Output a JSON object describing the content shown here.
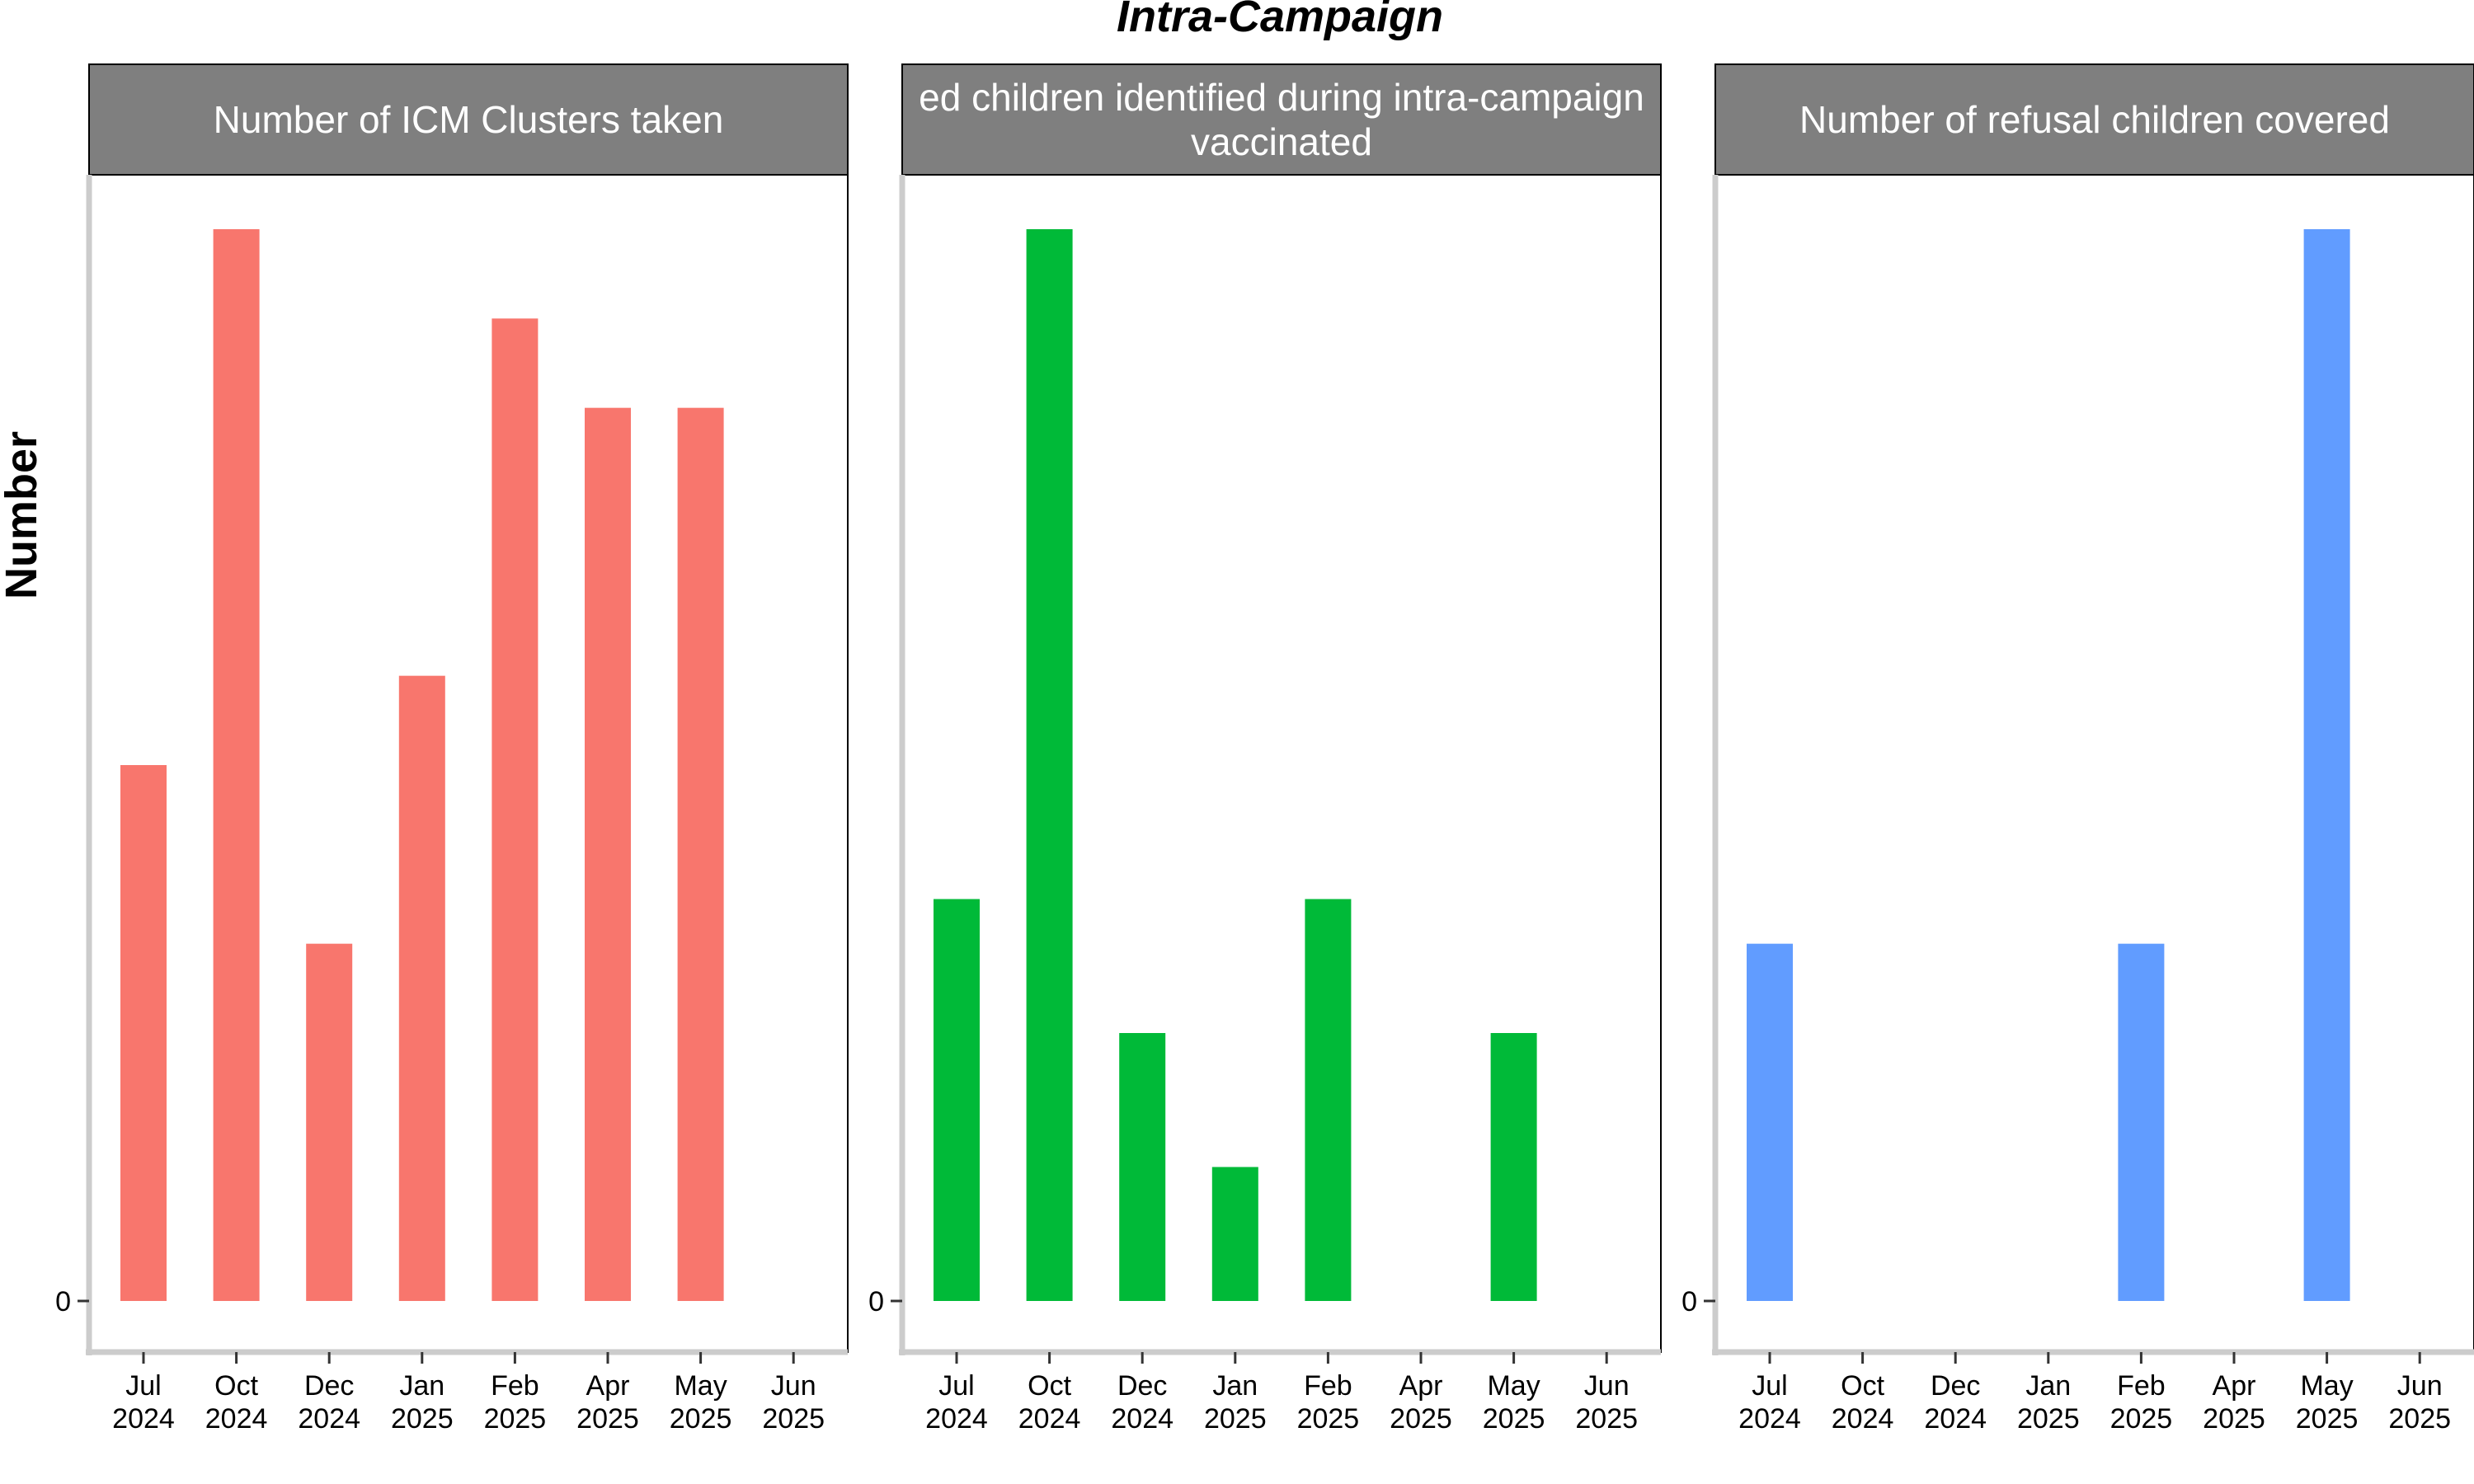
{
  "figure": {
    "title": "Intra-Campaign",
    "ylabel": "Number"
  },
  "chart_data": {
    "type": "bar",
    "title": "Intra-Campaign",
    "ylabel": "Number",
    "xlabel": "",
    "categories": [
      "Jul\n2024",
      "Oct\n2024",
      "Dec\n2024",
      "Jan\n2025",
      "Feb\n2025",
      "Apr\n2025",
      "May\n2025",
      "Jun\n2025"
    ],
    "y_tick_labels": [
      "0"
    ],
    "ylim": [
      0,
      12
    ],
    "grid": false,
    "legend": "none",
    "facets": [
      {
        "strip_label": "Number of ICM Clusters taken",
        "color": "#F8766D",
        "values": [
          6,
          12,
          4,
          7,
          11,
          10,
          10,
          null
        ]
      },
      {
        "strip_label": "ed children identified during intra-campaign\nvaccinated",
        "color": "#00BA38",
        "values": [
          4.5,
          12,
          3,
          1.5,
          4.5,
          null,
          3,
          null
        ]
      },
      {
        "strip_label": "Number of refusal children covered",
        "color": "#619CFF",
        "values": [
          4,
          null,
          null,
          null,
          4,
          null,
          12,
          null
        ]
      }
    ]
  }
}
